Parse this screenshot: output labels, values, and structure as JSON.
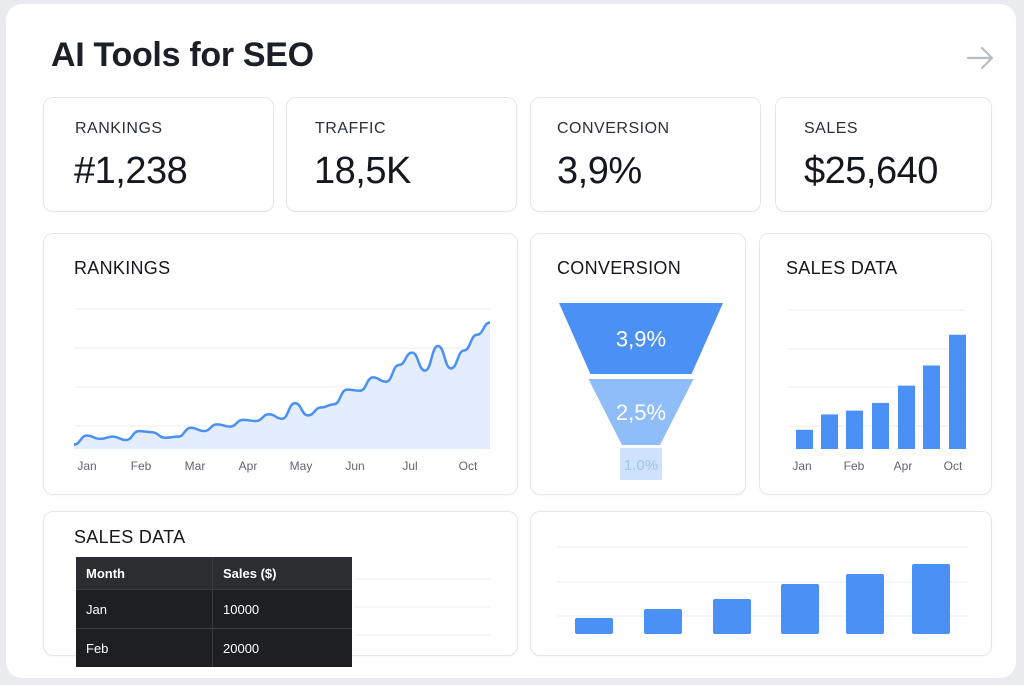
{
  "page": {
    "title": "AI Tools for SEO",
    "nav_icon": "arrow-right-icon"
  },
  "kpis": [
    {
      "label": "RANKINGS",
      "value": "#1,238"
    },
    {
      "label": "TRAFFIC",
      "value": "18,5K"
    },
    {
      "label": "CONVERSION",
      "value": "3,9%"
    },
    {
      "label": "SALES",
      "value": "$25,640"
    }
  ],
  "colors": {
    "accent": "#4a90f5",
    "area_fill": "#dde9fd",
    "table_bg": "#1e1f21",
    "table_header_bg": "#2c2d30"
  },
  "rankings_chart": {
    "title": "RANKINGS"
  },
  "conversion_chart": {
    "title": "CONVERSION"
  },
  "sales_chart": {
    "title": "SALES DATA"
  },
  "sales_table_card": {
    "title": "SALES DATA"
  },
  "sales_table": {
    "columns": [
      "Month",
      "Sales ($)"
    ],
    "rows": [
      [
        "Jan",
        "10000"
      ],
      [
        "Feb",
        "20000"
      ]
    ]
  },
  "chart_data": [
    {
      "type": "area",
      "title": "RANKINGS",
      "x_ticks": [
        "Jan",
        "Feb",
        "Mar",
        "Apr",
        "May",
        "Jun",
        "Jul",
        "Oct"
      ],
      "grid": true,
      "values": [
        4,
        12,
        9,
        11,
        8,
        16,
        15,
        10,
        11,
        19,
        16,
        22,
        20,
        26,
        25,
        31,
        27,
        41,
        30,
        37,
        40,
        53,
        52,
        64,
        60,
        75,
        86,
        70,
        92,
        72,
        88,
        102,
        113
      ]
    },
    {
      "type": "bar",
      "title": "CONVERSION",
      "categories": [
        "",
        "",
        ""
      ],
      "values": [
        3.9,
        2.5,
        1.0
      ],
      "labels": [
        "3,9%",
        "2,5%",
        "1.0%"
      ],
      "colors": [
        "#4a90f5",
        "#8fbdfa",
        "#cfe2fd"
      ]
    },
    {
      "type": "bar",
      "title": "SALES DATA",
      "x_ticks": [
        "Jan",
        "Feb",
        "Apr",
        "Oct"
      ],
      "grid": true,
      "values": [
        20,
        36,
        40,
        48,
        66,
        87,
        119
      ]
    },
    {
      "type": "bar",
      "title": "",
      "grid": true,
      "values": [
        16,
        25,
        35,
        50,
        60,
        70
      ]
    }
  ]
}
